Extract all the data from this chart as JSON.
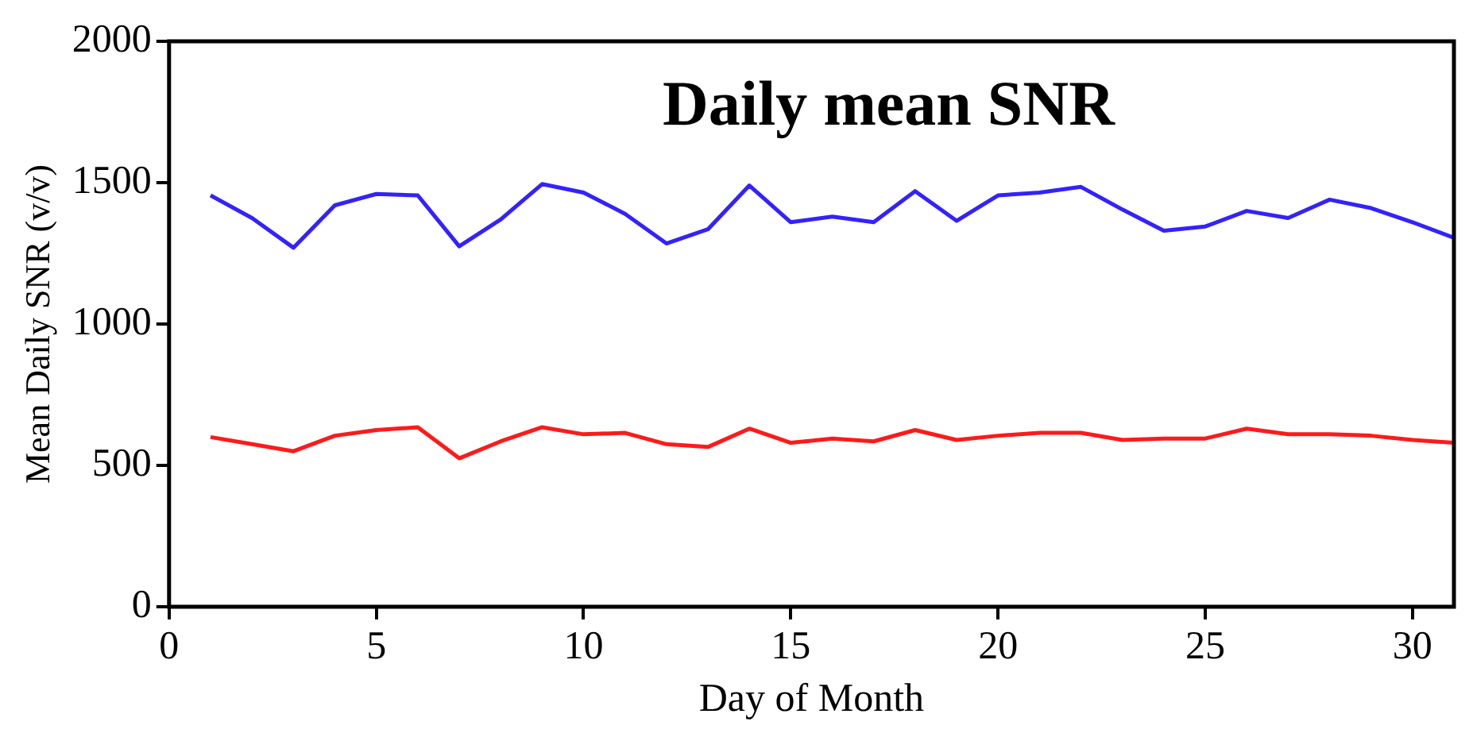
{
  "chart_data": {
    "type": "line",
    "title": "Daily mean SNR",
    "xlabel": "Day of Month",
    "ylabel": "Mean Daily SNR (v/v)",
    "x": [
      1,
      2,
      3,
      4,
      5,
      6,
      7,
      8,
      9,
      10,
      11,
      12,
      13,
      14,
      15,
      16,
      17,
      18,
      19,
      20,
      21,
      22,
      23,
      24,
      25,
      26,
      27,
      28,
      29,
      30,
      31
    ],
    "series": [
      {
        "color": "#3322ff",
        "values": [
          1455,
          1375,
          1270,
          1420,
          1460,
          1455,
          1275,
          1370,
          1495,
          1465,
          1390,
          1285,
          1335,
          1490,
          1360,
          1380,
          1360,
          1470,
          1365,
          1455,
          1465,
          1485,
          1405,
          1330,
          1345,
          1400,
          1375,
          1440,
          1410,
          1360,
          1305
        ]
      },
      {
        "color": "#ff1a1a",
        "values": [
          600,
          575,
          550,
          605,
          625,
          635,
          525,
          585,
          635,
          610,
          615,
          575,
          565,
          630,
          580,
          595,
          585,
          625,
          590,
          605,
          615,
          615,
          590,
          595,
          595,
          630,
          610,
          610,
          605,
          590,
          580
        ]
      }
    ],
    "xlim": [
      0,
      31
    ],
    "xticks": [
      0,
      5,
      10,
      15,
      20,
      25,
      30
    ],
    "ylim": [
      0,
      2000
    ],
    "yticks": [
      0,
      500,
      1000,
      1500,
      2000
    ],
    "grid": false,
    "legend": false,
    "marker": "none",
    "line_style": "solid"
  }
}
